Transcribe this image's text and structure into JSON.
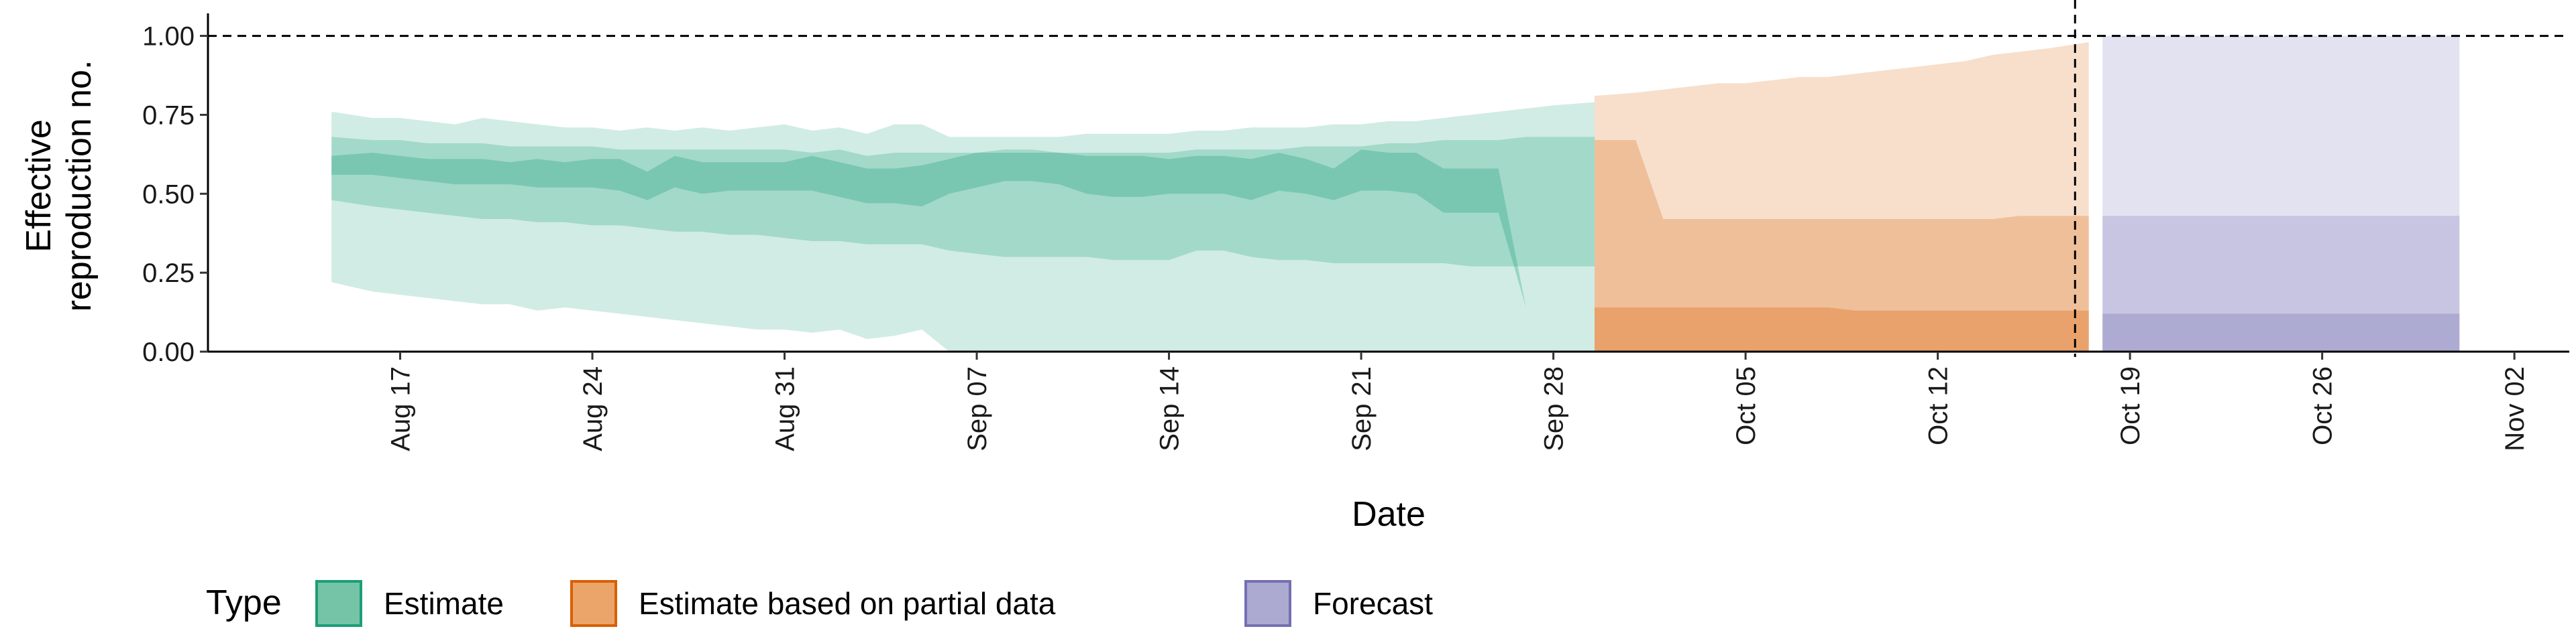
{
  "chart_data": {
    "type": "area",
    "xlabel": "Date",
    "ylabel": "Effective\nreproduction no.",
    "ylim": [
      0,
      1.05
    ],
    "yticks": [
      0.0,
      0.25,
      0.5,
      0.75,
      1.0
    ],
    "ytick_labels": [
      "0.00",
      "0.25",
      "0.50",
      "0.75",
      "1.00"
    ],
    "xlim": [
      "2020-08-10",
      "2020-11-04"
    ],
    "xticks": [
      "2020-08-17",
      "2020-08-24",
      "2020-08-31",
      "2020-09-07",
      "2020-09-14",
      "2020-09-21",
      "2020-09-28",
      "2020-10-05",
      "2020-10-12",
      "2020-10-19",
      "2020-10-26",
      "2020-11-02"
    ],
    "xtick_labels": [
      "Aug 17",
      "Aug 24",
      "Aug 31",
      "Sep 07",
      "Sep 14",
      "Sep 21",
      "Sep 28",
      "Oct 05",
      "Oct 12",
      "Oct 19",
      "Oct 26",
      "Nov 02"
    ],
    "reference_hline": 1.0,
    "reference_vline": "2020-10-17",
    "legend": {
      "title": "Type",
      "position": "bottom-left",
      "items": [
        {
          "label": "Estimate",
          "fill": "#75c4a8",
          "stroke": "#1b9e77"
        },
        {
          "label": "Estimate based on partial data",
          "fill": "#eba46a",
          "stroke": "#d95f02"
        },
        {
          "label": "Forecast",
          "fill": "#acaad1",
          "stroke": "#7570b3"
        }
      ]
    },
    "series": [
      {
        "name": "Estimate",
        "fill_color": "#1b9e77",
        "x": [
          "2020-08-15",
          "2020-08-16",
          "2020-08-17",
          "2020-08-18",
          "2020-08-19",
          "2020-08-20",
          "2020-08-21",
          "2020-08-22",
          "2020-08-23",
          "2020-08-24",
          "2020-08-25",
          "2020-08-26",
          "2020-08-27",
          "2020-08-28",
          "2020-08-29",
          "2020-08-30",
          "2020-08-31",
          "2020-09-01",
          "2020-09-02",
          "2020-09-03",
          "2020-09-04",
          "2020-09-05",
          "2020-09-06",
          "2020-09-07",
          "2020-09-08",
          "2020-09-09",
          "2020-09-10",
          "2020-09-11",
          "2020-09-12",
          "2020-09-13",
          "2020-09-14",
          "2020-09-15",
          "2020-09-16",
          "2020-09-17",
          "2020-09-18",
          "2020-09-19",
          "2020-09-20",
          "2020-09-21",
          "2020-09-22",
          "2020-09-23",
          "2020-09-24",
          "2020-09-25",
          "2020-09-26",
          "2020-09-27",
          "2020-09-28",
          "2020-09-29"
        ],
        "lower_90": [
          0.22,
          0.19,
          0.18,
          0.17,
          0.16,
          0.15,
          0.15,
          0.13,
          0.14,
          0.13,
          0.12,
          0.11,
          0.1,
          0.09,
          0.08,
          0.07,
          0.07,
          0.06,
          0.07,
          0.04,
          0.05,
          0.07,
          0.0,
          0.0,
          0.0,
          0.0,
          0.0,
          0.0,
          0.0,
          0.0,
          0.0,
          0.0,
          0.0,
          0.0,
          0.0,
          0.0,
          0.0,
          0.0,
          0.0,
          0.0,
          0.0,
          0.0,
          0.0,
          0.0,
          0.0,
          0.0
        ],
        "upper_90": [
          0.76,
          0.74,
          0.74,
          0.73,
          0.72,
          0.74,
          0.73,
          0.72,
          0.71,
          0.71,
          0.7,
          0.71,
          0.7,
          0.71,
          0.7,
          0.71,
          0.72,
          0.7,
          0.71,
          0.69,
          0.72,
          0.72,
          0.68,
          0.68,
          0.68,
          0.68,
          0.68,
          0.69,
          0.69,
          0.69,
          0.69,
          0.7,
          0.7,
          0.71,
          0.71,
          0.71,
          0.72,
          0.72,
          0.73,
          0.73,
          0.74,
          0.75,
          0.76,
          0.77,
          0.78,
          0.79
        ],
        "lower_50": [
          0.48,
          0.46,
          0.45,
          0.44,
          0.43,
          0.42,
          0.42,
          0.41,
          0.41,
          0.4,
          0.4,
          0.39,
          0.38,
          0.38,
          0.37,
          0.37,
          0.36,
          0.35,
          0.35,
          0.34,
          0.34,
          0.34,
          0.32,
          0.31,
          0.3,
          0.3,
          0.3,
          0.3,
          0.29,
          0.29,
          0.29,
          0.32,
          0.32,
          0.3,
          0.29,
          0.29,
          0.28,
          0.28,
          0.28,
          0.28,
          0.28,
          0.27,
          0.27,
          0.27,
          0.27,
          0.27
        ],
        "upper_50": [
          0.68,
          0.67,
          0.67,
          0.66,
          0.66,
          0.66,
          0.65,
          0.65,
          0.65,
          0.65,
          0.64,
          0.64,
          0.64,
          0.64,
          0.64,
          0.64,
          0.64,
          0.63,
          0.64,
          0.62,
          0.63,
          0.63,
          0.63,
          0.63,
          0.64,
          0.64,
          0.63,
          0.63,
          0.63,
          0.63,
          0.63,
          0.64,
          0.64,
          0.64,
          0.64,
          0.65,
          0.65,
          0.65,
          0.66,
          0.66,
          0.67,
          0.67,
          0.67,
          0.68,
          0.68,
          0.68
        ],
        "lower_20": [
          0.56,
          0.56,
          0.55,
          0.54,
          0.53,
          0.53,
          0.53,
          0.52,
          0.52,
          0.52,
          0.51,
          0.48,
          0.52,
          0.5,
          0.51,
          0.51,
          0.51,
          0.51,
          0.49,
          0.47,
          0.47,
          0.46,
          0.5,
          0.52,
          0.54,
          0.54,
          0.53,
          0.5,
          0.49,
          0.49,
          0.5,
          0.5,
          0.5,
          0.48,
          0.51,
          0.5,
          0.48,
          0.51,
          0.51,
          0.5,
          0.44,
          0.44,
          0.44,
          0.14,
          0.14,
          0.14
        ],
        "upper_20": [
          0.62,
          0.63,
          0.62,
          0.61,
          0.61,
          0.61,
          0.6,
          0.61,
          0.6,
          0.61,
          0.61,
          0.57,
          0.62,
          0.6,
          0.6,
          0.6,
          0.6,
          0.62,
          0.6,
          0.58,
          0.58,
          0.59,
          0.61,
          0.63,
          0.63,
          0.63,
          0.63,
          0.62,
          0.62,
          0.62,
          0.61,
          0.62,
          0.62,
          0.61,
          0.63,
          0.61,
          0.58,
          0.64,
          0.63,
          0.63,
          0.58,
          0.58,
          0.58,
          0.14,
          0.14,
          0.14
        ]
      },
      {
        "name": "Estimate based on partial data",
        "fill_color": "#d95f02",
        "x": [
          "2020-09-30",
          "2020-10-01",
          "2020-10-02",
          "2020-10-03",
          "2020-10-04",
          "2020-10-05",
          "2020-10-06",
          "2020-10-07",
          "2020-10-08",
          "2020-10-09",
          "2020-10-10",
          "2020-10-11",
          "2020-10-12",
          "2020-10-13",
          "2020-10-14",
          "2020-10-15",
          "2020-10-16",
          "2020-10-17"
        ],
        "lower_90": [
          0.0,
          0.0,
          0.0,
          0.0,
          0.0,
          0.0,
          0.0,
          0.0,
          0.0,
          0.0,
          0.0,
          0.0,
          0.0,
          0.0,
          0.0,
          0.0,
          0.0,
          0.0
        ],
        "upper_90": [
          0.81,
          0.82,
          0.83,
          0.84,
          0.85,
          0.85,
          0.86,
          0.87,
          0.87,
          0.88,
          0.89,
          0.9,
          0.91,
          0.92,
          0.94,
          0.95,
          0.96,
          0.98
        ],
        "lower_50": [
          0.0,
          0.0,
          0.0,
          0.0,
          0.0,
          0.0,
          0.0,
          0.0,
          0.0,
          0.0,
          0.0,
          0.0,
          0.0,
          0.0,
          0.0,
          0.0,
          0.0,
          0.0
        ],
        "upper_50": [
          0.67,
          0.67,
          0.42,
          0.42,
          0.42,
          0.42,
          0.42,
          0.42,
          0.42,
          0.42,
          0.42,
          0.42,
          0.42,
          0.42,
          0.42,
          0.43,
          0.43,
          0.43
        ],
        "lower_20": [
          0.0,
          0.0,
          0.0,
          0.0,
          0.0,
          0.0,
          0.0,
          0.0,
          0.0,
          0.0,
          0.0,
          0.0,
          0.0,
          0.0,
          0.0,
          0.0,
          0.0,
          0.0
        ],
        "upper_20": [
          0.14,
          0.14,
          0.14,
          0.14,
          0.14,
          0.14,
          0.14,
          0.14,
          0.14,
          0.13,
          0.13,
          0.13,
          0.13,
          0.13,
          0.13,
          0.13,
          0.13,
          0.13
        ]
      },
      {
        "name": "Forecast",
        "fill_color": "#7570b3",
        "x": [
          "2020-10-18",
          "2020-10-31"
        ],
        "lower_90": [
          0.0,
          0.0
        ],
        "upper_90": [
          1.0,
          1.0
        ],
        "lower_50": [
          0.0,
          0.0
        ],
        "upper_50": [
          0.43,
          0.43
        ],
        "lower_20": [
          0.0,
          0.0
        ],
        "upper_20": [
          0.12,
          0.12
        ]
      }
    ]
  }
}
